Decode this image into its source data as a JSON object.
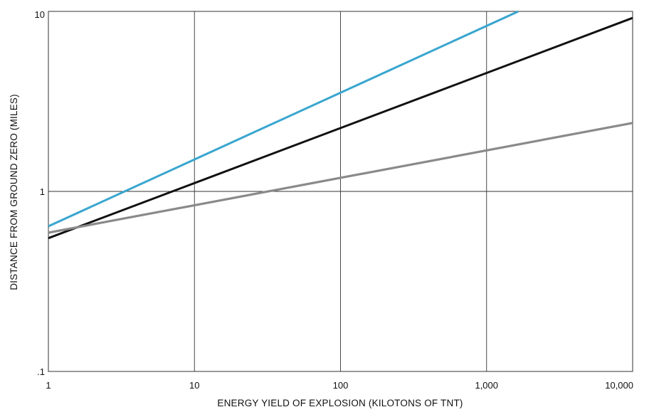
{
  "chart_data": {
    "type": "line",
    "title": "",
    "xlabel": "ENERGY YIELD OF EXPLOSION (KILOTONS OF TNT)",
    "ylabel": "DISTANCE FROM GROUND ZERO (MILES)",
    "x_scale": "log",
    "y_scale": "log",
    "xlim": [
      1,
      10000
    ],
    "ylim": [
      0.1,
      10
    ],
    "x_ticks": [
      1,
      10,
      100,
      1000,
      10000
    ],
    "x_tick_labels": [
      "1",
      "10",
      "100",
      "1,000",
      "10,000"
    ],
    "y_ticks": [
      0.1,
      1,
      10
    ],
    "y_tick_labels": [
      ".1",
      "1",
      "10"
    ],
    "grid": true,
    "legend": "none",
    "series": [
      {
        "color": "#3aa6cf",
        "x": [
          1,
          1650
        ],
        "y": [
          0.64,
          10
        ]
      },
      {
        "color": "#111111",
        "x": [
          1,
          10000
        ],
        "y": [
          0.55,
          9.2
        ]
      },
      {
        "color": "#8a8a8a",
        "x": [
          1,
          10000
        ],
        "y": [
          0.59,
          2.4
        ]
      }
    ]
  }
}
